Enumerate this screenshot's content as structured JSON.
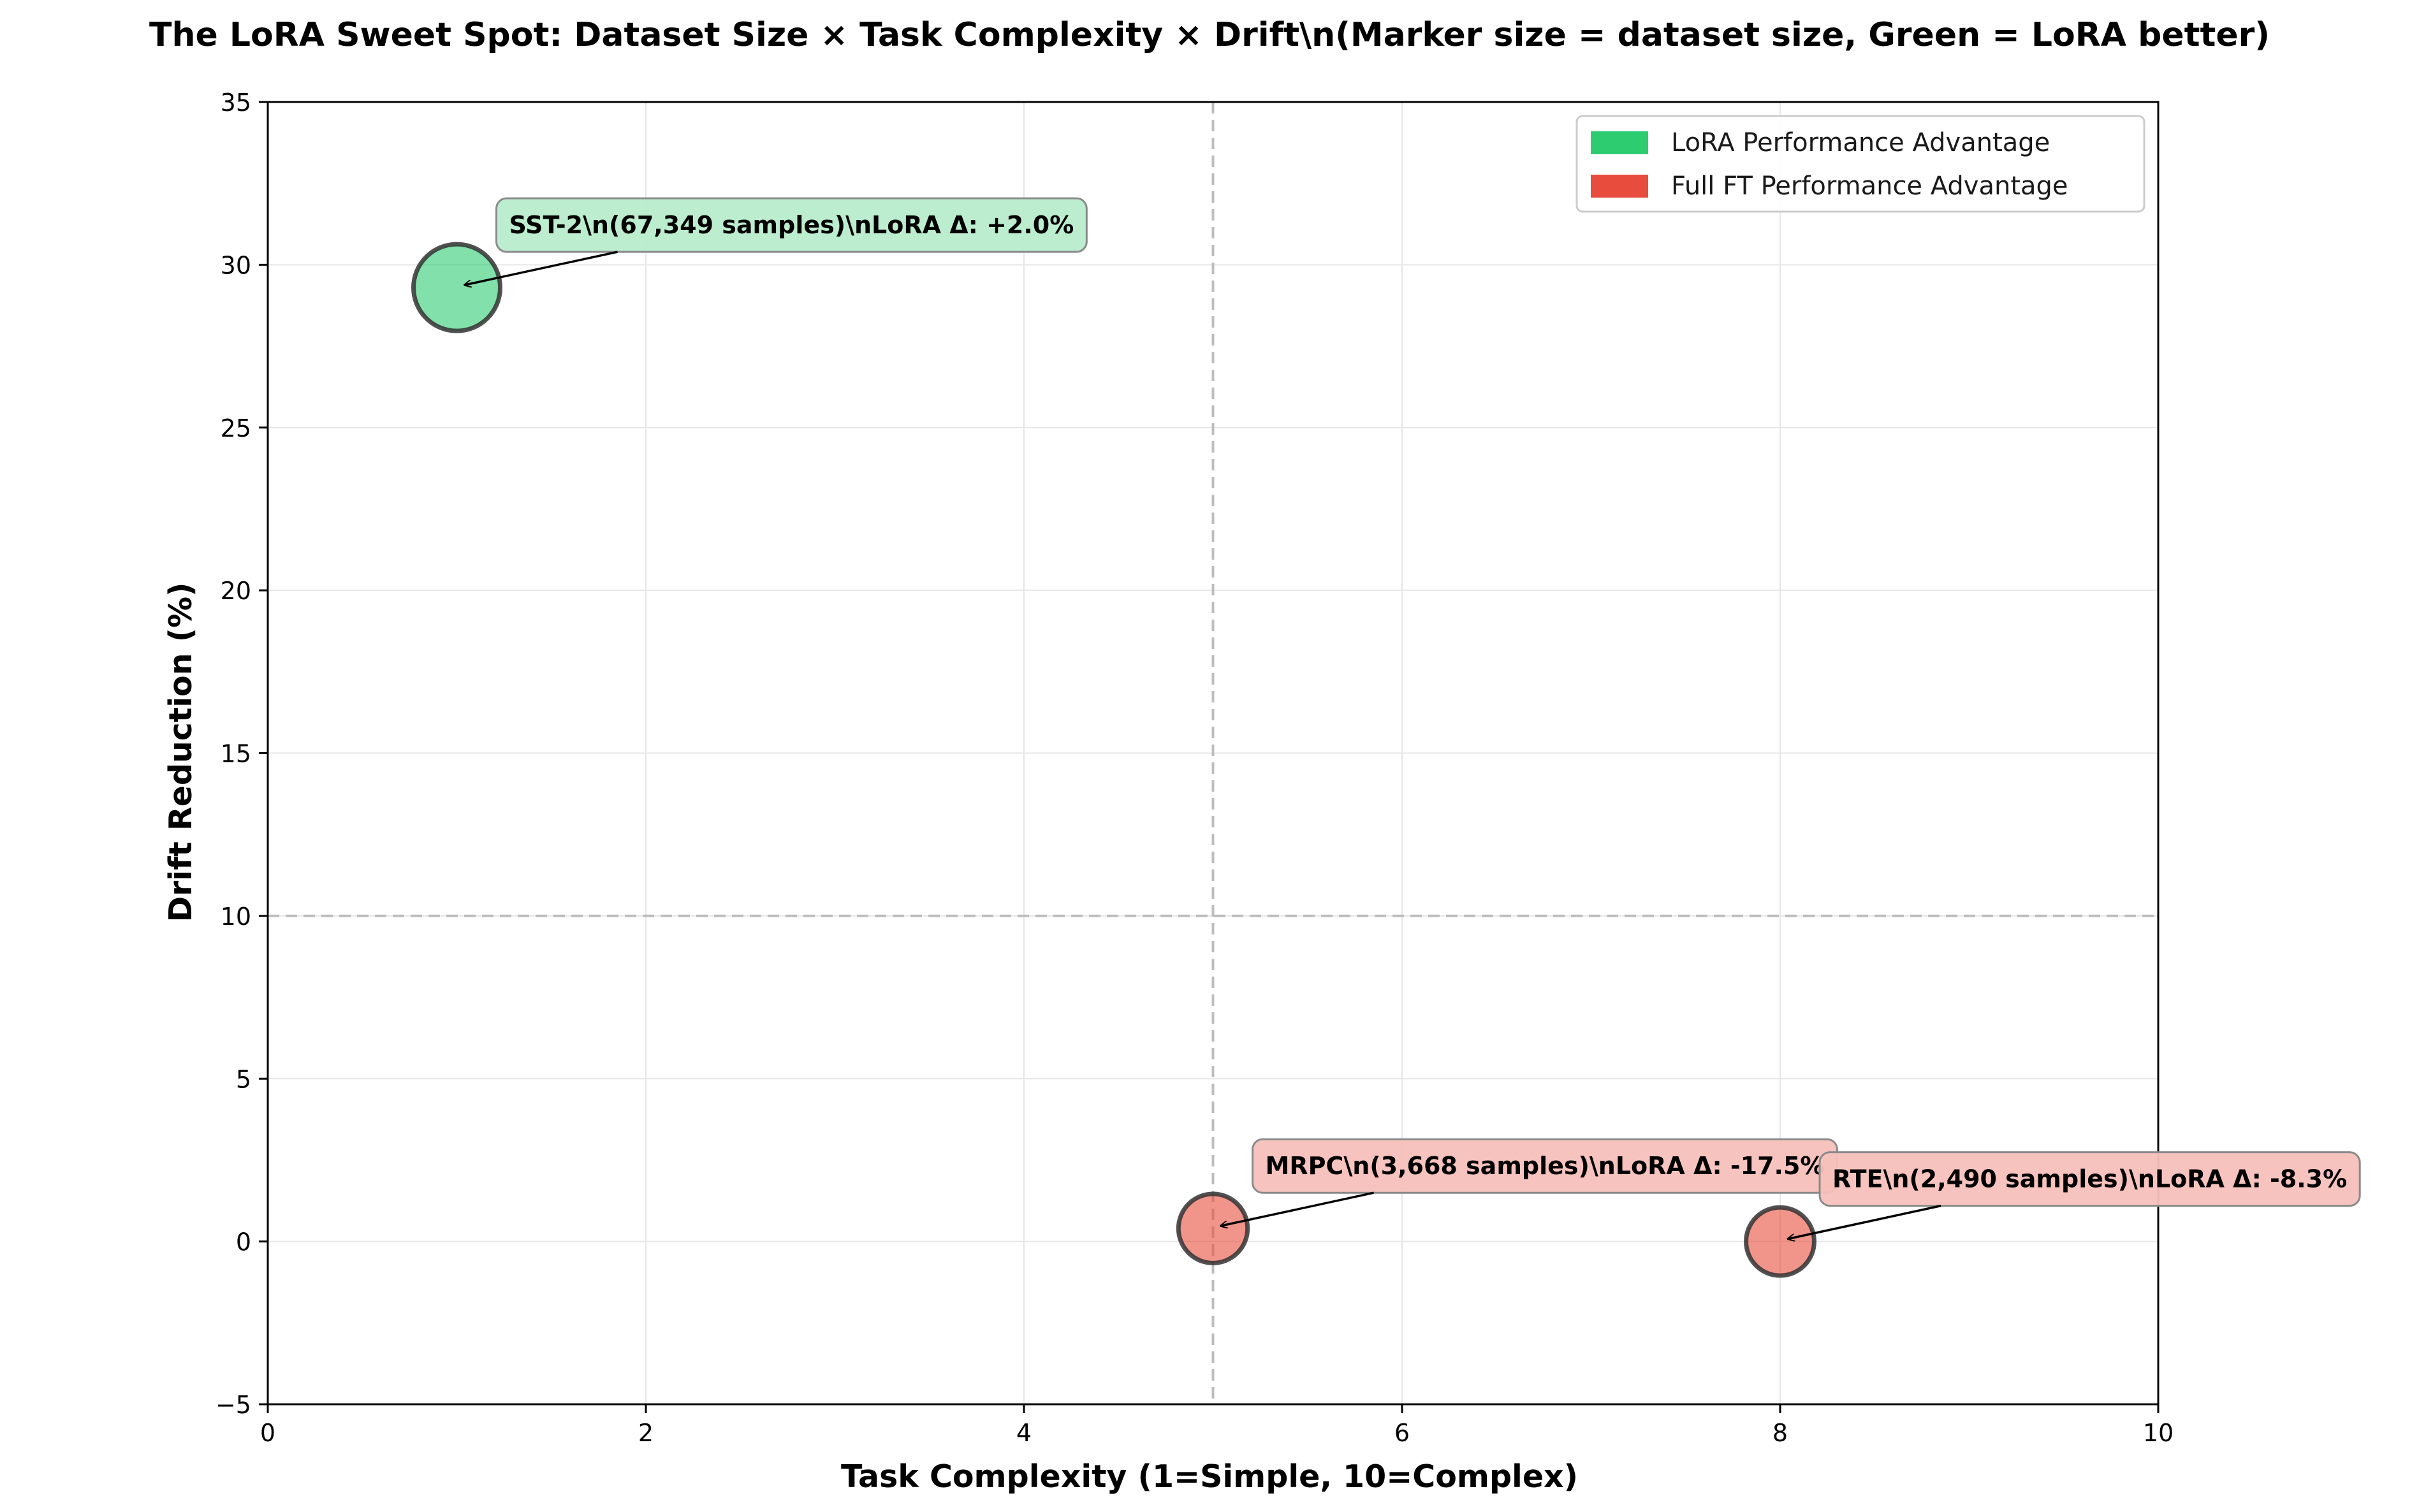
{
  "chart_data": {
    "type": "scatter",
    "title": "The LoRA Sweet Spot: Dataset Size × Task Complexity × Drift\\n(Marker size = dataset size, Green = LoRA better)",
    "xlabel": "Task Complexity (1=Simple, 10=Complex)",
    "ylabel": "Drift Reduction (%)",
    "xlim": [
      0,
      10
    ],
    "ylim": [
      -5,
      35
    ],
    "xticks": [
      0,
      2,
      4,
      6,
      8,
      10
    ],
    "yticks": [
      -5,
      0,
      5,
      10,
      15,
      20,
      25,
      30,
      35
    ],
    "xtick_labels": [
      "0",
      "2",
      "4",
      "6",
      "8",
      "10"
    ],
    "ytick_labels": [
      "−5",
      "0",
      "5",
      "10",
      "15",
      "20",
      "25",
      "30",
      "35"
    ],
    "grid": true,
    "reference_lines": {
      "x": 5,
      "y": 10
    },
    "legend": {
      "placement": "top-right",
      "entries": [
        {
          "label": "LoRA Performance Advantage",
          "color": "#2ecc71"
        },
        {
          "label": "Full FT Performance Advantage",
          "color": "#e74c3c"
        }
      ]
    },
    "points": [
      {
        "x": 1,
        "y": 29.3,
        "samples": 67349,
        "lora_delta": 2.0,
        "color": "#2ecc71",
        "annotation": "SST-2\\n(67,349 samples)\\nLoRA Δ: +2.0%"
      },
      {
        "x": 5,
        "y": 0.4,
        "samples": 3668,
        "lora_delta": -17.5,
        "color": "#e74c3c",
        "annotation": "MRPC\\n(3,668 samples)\\nLoRA Δ: -17.5%"
      },
      {
        "x": 8,
        "y": 0.0,
        "samples": 2490,
        "lora_delta": -8.3,
        "color": "#e74c3c",
        "annotation": "RTE\\n(2,490 samples)\\nLoRA Δ: -8.3%"
      }
    ]
  }
}
